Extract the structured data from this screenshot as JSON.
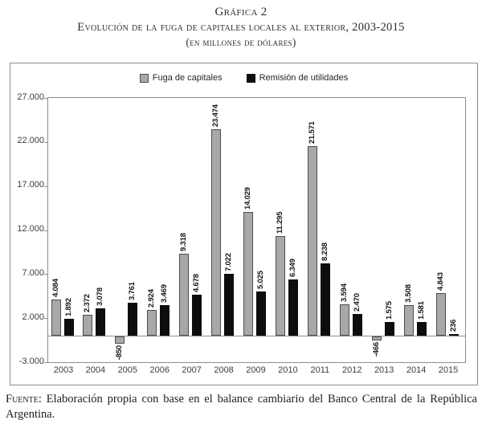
{
  "title": {
    "line1": "Gráfica 2",
    "line2": "Evolución de la fuga de capitales locales al exterior, 2003-2015",
    "line3": "(en millones de dólares)"
  },
  "source": {
    "label": "Fuente:",
    "text": " Elaboración propia con base en el balance cambiario del Banco Central de la República Argentina."
  },
  "chart_data": {
    "type": "bar",
    "title": "Evolución de la fuga de capitales locales al exterior, 2003-2015 (en millones de dólares)",
    "categories": [
      "2003",
      "2004",
      "2005",
      "2006",
      "2007",
      "2008",
      "2009",
      "2010",
      "2011",
      "2012",
      "2013",
      "2014",
      "2015"
    ],
    "series": [
      {
        "name": "Fuga de capitales",
        "color": "#a8a8a8",
        "border_color": "#4d4d4d",
        "values": [
          4084,
          2372,
          -850,
          2924,
          9318,
          23474,
          14029,
          11295,
          21571,
          3594,
          -466,
          3508,
          4843
        ],
        "labels": [
          "4.084",
          "2.372",
          "-850",
          "2.924",
          "9.318",
          "23.474",
          "14.029",
          "11.295",
          "21.571",
          "3.594",
          "-466",
          "3.508",
          "4.843"
        ]
      },
      {
        "name": "Remisión de utilidades",
        "color": "#0d0d0d",
        "border_color": "#0d0d0d",
        "values": [
          1892,
          3078,
          3761,
          3469,
          4678,
          7022,
          5025,
          6349,
          8238,
          2470,
          1575,
          1581,
          236
        ],
        "labels": [
          "1.892",
          "3.078",
          "3.761",
          "3.469",
          "4.678",
          "7.022",
          "5.025",
          "6.349",
          "8.238",
          "2.470",
          "1.575",
          "1.581",
          "236"
        ]
      }
    ],
    "ylim": [
      -3000,
      27000
    ],
    "ytick_values": [
      27000,
      22000,
      17000,
      12000,
      7000,
      2000,
      -3000
    ],
    "ytick_labels": [
      "27.000",
      "22.000",
      "17.000",
      "12.000",
      "7.000",
      "2.000",
      "-3.000"
    ],
    "legend_position": "top-center",
    "grid": false,
    "value_labels_rotation": "vertical-bottom-to-top"
  }
}
